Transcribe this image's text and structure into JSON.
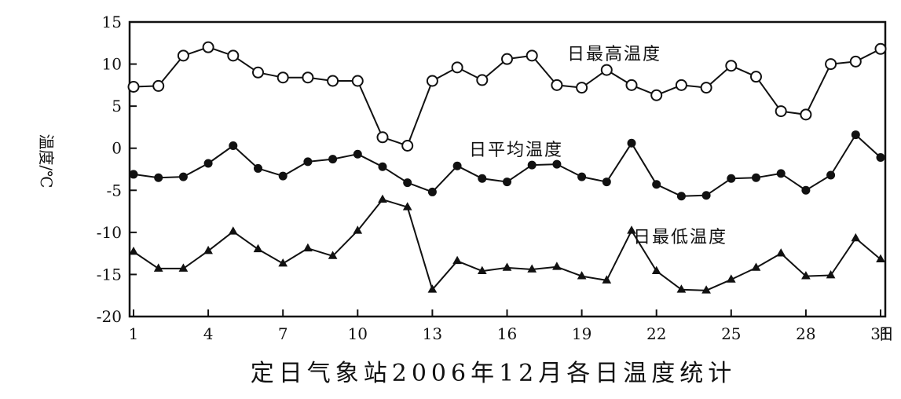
{
  "chart_data": {
    "type": "line",
    "title": "定日气象站2006年12月各日温度统计",
    "xlabel": "日",
    "ylabel": "温度/℃",
    "xlim": [
      1,
      31
    ],
    "ylim": [
      -20,
      15
    ],
    "xticks": [
      1,
      4,
      7,
      10,
      13,
      16,
      19,
      22,
      25,
      28,
      31
    ],
    "yticks": [
      15,
      10,
      5,
      0,
      -5,
      -10,
      -15,
      -20
    ],
    "grid": false,
    "x": [
      1,
      2,
      3,
      4,
      5,
      6,
      7,
      8,
      9,
      10,
      11,
      12,
      13,
      14,
      15,
      16,
      17,
      18,
      19,
      20,
      21,
      22,
      23,
      24,
      25,
      26,
      27,
      28,
      29,
      30,
      31
    ],
    "series": [
      {
        "name": "日最高温度",
        "marker": "open-circle",
        "values": [
          7.3,
          7.4,
          11.0,
          12.0,
          11.0,
          9.0,
          8.4,
          8.4,
          8.0,
          8.0,
          1.3,
          0.3,
          8.0,
          9.6,
          8.1,
          10.6,
          11.0,
          7.5,
          7.2,
          9.3,
          7.5,
          6.3,
          7.5,
          7.2,
          9.8,
          8.5,
          4.4,
          4.0,
          10.0,
          10.3,
          11.8
        ],
        "color": "#111111"
      },
      {
        "name": "日平均温度",
        "marker": "filled-circle",
        "values": [
          -3.1,
          -3.5,
          -3.4,
          -1.8,
          0.3,
          -2.4,
          -3.3,
          -1.6,
          -1.3,
          -0.7,
          -2.2,
          -4.1,
          -5.2,
          -2.1,
          -3.6,
          -4.0,
          -2.0,
          -1.9,
          -3.4,
          -4.0,
          0.6,
          -4.3,
          -5.7,
          -5.6,
          -3.6,
          -3.5,
          -3.0,
          -5.0,
          -3.2,
          1.6,
          -1.1
        ],
        "color": "#111111"
      },
      {
        "name": "日最低温度",
        "marker": "filled-triangle",
        "values": [
          -12.3,
          -14.3,
          -14.3,
          -12.2,
          -9.9,
          -12.0,
          -13.7,
          -11.9,
          -12.8,
          -9.8,
          -6.1,
          -7.0,
          -16.8,
          -13.4,
          -14.6,
          -14.2,
          -14.4,
          -14.1,
          -15.2,
          -15.7,
          -9.8,
          -14.6,
          -16.8,
          -16.9,
          -15.6,
          -14.2,
          -12.5,
          -15.2,
          -15.1,
          -10.7,
          -13.2
        ],
        "color": "#111111"
      }
    ]
  }
}
